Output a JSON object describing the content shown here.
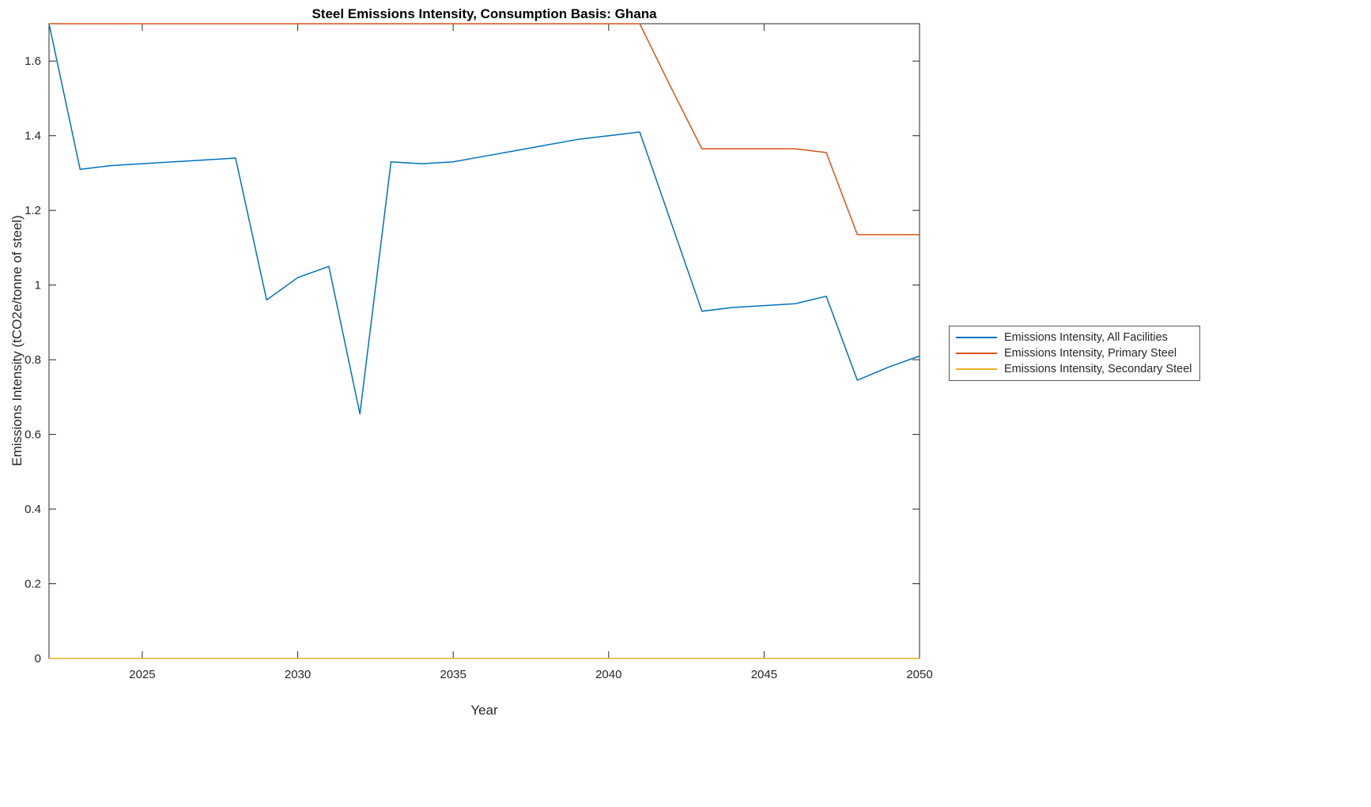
{
  "chart_data": {
    "type": "line",
    "title": "Steel Emissions Intensity, Consumption Basis: Ghana",
    "xlabel": "Year",
    "ylabel": "Emissions Intensity (tCO2e/tonne of steel)",
    "xlim": [
      2022,
      2050
    ],
    "ylim": [
      0,
      1.7
    ],
    "xticks": [
      2025,
      2030,
      2035,
      2040,
      2045,
      2050
    ],
    "yticks": [
      0,
      0.2,
      0.4,
      0.6,
      0.8,
      1,
      1.2,
      1.4,
      1.6
    ],
    "grid": false,
    "legend_position": "right-outside-middle",
    "x": [
      2022,
      2023,
      2024,
      2025,
      2026,
      2027,
      2028,
      2029,
      2030,
      2031,
      2032,
      2033,
      2034,
      2035,
      2036,
      2037,
      2038,
      2039,
      2040,
      2041,
      2042,
      2043,
      2044,
      2045,
      2046,
      2047,
      2048,
      2049,
      2050
    ],
    "series": [
      {
        "name": "Emissions Intensity, All Facilities",
        "color": "#0072BD",
        "values": [
          1.7,
          1.31,
          1.32,
          1.325,
          1.33,
          1.335,
          1.34,
          0.96,
          1.02,
          1.05,
          0.655,
          1.33,
          1.325,
          1.33,
          1.345,
          1.36,
          1.375,
          1.39,
          1.4,
          1.41,
          1.17,
          0.93,
          0.94,
          0.945,
          0.95,
          0.97,
          0.745,
          0.78,
          0.81
        ]
      },
      {
        "name": "Emissions Intensity, Primary Steel",
        "color": "#D95319",
        "values": [
          1.7,
          1.7,
          1.7,
          1.7,
          1.7,
          1.7,
          1.7,
          1.7,
          1.7,
          1.7,
          1.7,
          1.7,
          1.7,
          1.7,
          1.7,
          1.7,
          1.7,
          1.7,
          1.7,
          1.7,
          1.53,
          1.365,
          1.365,
          1.365,
          1.365,
          1.355,
          1.135,
          1.135,
          1.135
        ]
      },
      {
        "name": "Emissions Intensity, Secondary Steel",
        "color": "#EDB120",
        "values": [
          0,
          0,
          0,
          0,
          0,
          0,
          0,
          0,
          0,
          0,
          0,
          0,
          0,
          0,
          0,
          0,
          0,
          0,
          0,
          0,
          0,
          0,
          0,
          0,
          0,
          0,
          0,
          0,
          0
        ]
      }
    ]
  }
}
